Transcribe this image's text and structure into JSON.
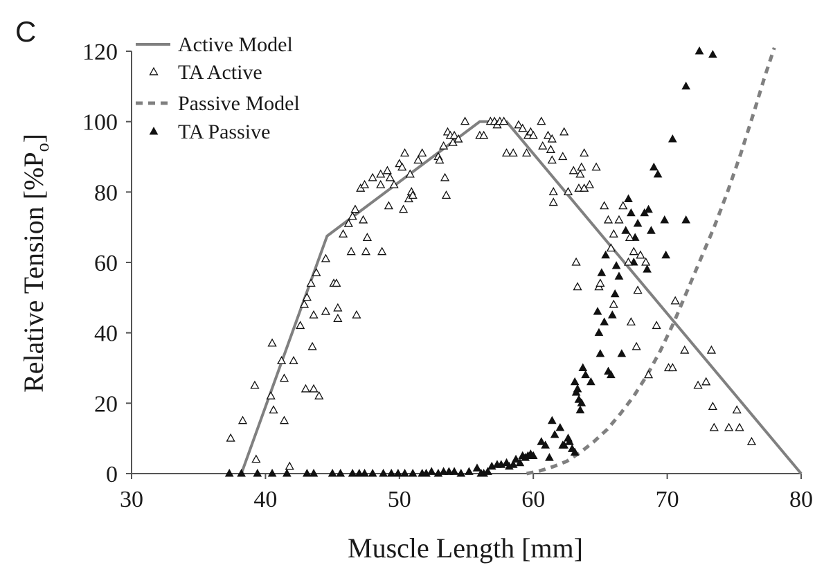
{
  "panel_label": "C",
  "chart_data": {
    "type": "scatter",
    "xlabel": "Muscle Length [mm]",
    "ylabel": "Relative Tension [%P",
    "ylabel_sub": "o",
    "ylabel_end": "]",
    "xlim": [
      30,
      80
    ],
    "ylim": [
      0,
      120
    ],
    "xticks": [
      30,
      40,
      50,
      60,
      70,
      80
    ],
    "yticks": [
      0,
      20,
      40,
      60,
      80,
      100,
      120
    ],
    "grid": false,
    "legend_position": "top-left",
    "legend": [
      {
        "label": "Active Model",
        "marker": "solid-line"
      },
      {
        "label": "TA Active",
        "marker": "open-triangle"
      },
      {
        "label": "Passive Model",
        "marker": "dashed-line"
      },
      {
        "label": "TA Passive",
        "marker": "filled-triangle"
      }
    ],
    "colors": {
      "model": "#808080",
      "points": "#111111",
      "axis": "#555555"
    },
    "active_model": {
      "name": "Active Model",
      "x": [
        38.2,
        44.6,
        56.0,
        58.0,
        80.0
      ],
      "y": [
        0,
        67.5,
        100,
        100,
        0
      ]
    },
    "passive_model": {
      "name": "Passive Model",
      "x": [
        59.5,
        60.5,
        61.5,
        62.5,
        63.5,
        64.5,
        65.5,
        66.5,
        67.5,
        68.5,
        69.5,
        70.5,
        71.5,
        72.5,
        73.5,
        74.5,
        75.5,
        76.5,
        77.3,
        78.0
      ],
      "y": [
        0,
        0.8,
        2,
        3.5,
        6,
        9,
        12.5,
        17,
        22,
        28,
        35,
        43,
        52,
        61,
        70,
        80,
        91,
        103,
        113,
        121
      ]
    },
    "ta_active": {
      "name": "TA Active",
      "points": [
        [
          37.4,
          10
        ],
        [
          38.3,
          15
        ],
        [
          39.2,
          25
        ],
        [
          39.3,
          4
        ],
        [
          40.5,
          37
        ],
        [
          40.4,
          22
        ],
        [
          40.6,
          18
        ],
        [
          41.2,
          32
        ],
        [
          41.4,
          27
        ],
        [
          41.4,
          15
        ],
        [
          41.8,
          2
        ],
        [
          42.1,
          32
        ],
        [
          42.6,
          42
        ],
        [
          42.9,
          48
        ],
        [
          43.1,
          50
        ],
        [
          43.0,
          24
        ],
        [
          43.4,
          54
        ],
        [
          43.6,
          45
        ],
        [
          43.5,
          36
        ],
        [
          43.6,
          24
        ],
        [
          43.8,
          57
        ],
        [
          44.0,
          22
        ],
        [
          44.5,
          61
        ],
        [
          44.5,
          46
        ],
        [
          45.1,
          54
        ],
        [
          45.3,
          54
        ],
        [
          45.4,
          47
        ],
        [
          45.4,
          44
        ],
        [
          45.8,
          68
        ],
        [
          46.2,
          71
        ],
        [
          46.5,
          73
        ],
        [
          46.4,
          63
        ],
        [
          46.7,
          75
        ],
        [
          46.8,
          45
        ],
        [
          47.1,
          81
        ],
        [
          47.3,
          72
        ],
        [
          47.4,
          82
        ],
        [
          47.5,
          63
        ],
        [
          47.6,
          67
        ],
        [
          48.0,
          84
        ],
        [
          48.6,
          85
        ],
        [
          48.6,
          82
        ],
        [
          48.7,
          63
        ],
        [
          49.1,
          86
        ],
        [
          49.2,
          76
        ],
        [
          49.3,
          84
        ],
        [
          49.6,
          82
        ],
        [
          50.0,
          88
        ],
        [
          50.2,
          87
        ],
        [
          50.3,
          75
        ],
        [
          50.4,
          91
        ],
        [
          50.7,
          78
        ],
        [
          50.8,
          85
        ],
        [
          50.9,
          80
        ],
        [
          51.0,
          79
        ],
        [
          51.4,
          89
        ],
        [
          51.7,
          91
        ],
        [
          52.9,
          90
        ],
        [
          53.0,
          89
        ],
        [
          53.3,
          93
        ],
        [
          53.4,
          84
        ],
        [
          53.5,
          79
        ],
        [
          53.6,
          97
        ],
        [
          53.8,
          96
        ],
        [
          54.0,
          94
        ],
        [
          54.1,
          96
        ],
        [
          54.4,
          95
        ],
        [
          54.9,
          100
        ],
        [
          56.0,
          96
        ],
        [
          56.3,
          96
        ],
        [
          56.8,
          100
        ],
        [
          57.1,
          100
        ],
        [
          57.3,
          99
        ],
        [
          57.5,
          100
        ],
        [
          57.8,
          100
        ],
        [
          58.0,
          91
        ],
        [
          58.5,
          91
        ],
        [
          58.9,
          99
        ],
        [
          59.2,
          98
        ],
        [
          59.5,
          91
        ],
        [
          59.6,
          96
        ],
        [
          59.8,
          97
        ],
        [
          60.0,
          96
        ],
        [
          60.6,
          100
        ],
        [
          60.7,
          93
        ],
        [
          61.1,
          96
        ],
        [
          61.3,
          92
        ],
        [
          61.4,
          95
        ],
        [
          61.4,
          89
        ],
        [
          61.5,
          80
        ],
        [
          61.5,
          77
        ],
        [
          62.2,
          90
        ],
        [
          62.3,
          97
        ],
        [
          62.6,
          80
        ],
        [
          63.0,
          86
        ],
        [
          63.2,
          60
        ],
        [
          63.3,
          53
        ],
        [
          63.4,
          81
        ],
        [
          63.5,
          85
        ],
        [
          63.6,
          87
        ],
        [
          63.8,
          91
        ],
        [
          63.8,
          81
        ],
        [
          64.2,
          82
        ],
        [
          64.7,
          87
        ],
        [
          64.9,
          53
        ],
        [
          65.0,
          54
        ],
        [
          65.3,
          76
        ],
        [
          65.6,
          72
        ],
        [
          65.8,
          64
        ],
        [
          66.0,
          68
        ],
        [
          66.0,
          48
        ],
        [
          66.4,
          72
        ],
        [
          66.7,
          76
        ],
        [
          67.1,
          60
        ],
        [
          67.2,
          67
        ],
        [
          67.3,
          43
        ],
        [
          67.5,
          63
        ],
        [
          67.7,
          36
        ],
        [
          67.8,
          52
        ],
        [
          68.0,
          62
        ],
        [
          68.4,
          60
        ],
        [
          68.6,
          28
        ],
        [
          69.2,
          42
        ],
        [
          70.1,
          30
        ],
        [
          70.4,
          30
        ],
        [
          70.6,
          49
        ],
        [
          71.3,
          35
        ],
        [
          72.3,
          25
        ],
        [
          72.9,
          26
        ],
        [
          73.3,
          35
        ],
        [
          73.4,
          19
        ],
        [
          73.5,
          13
        ],
        [
          74.6,
          13
        ],
        [
          75.2,
          18
        ],
        [
          75.4,
          13
        ],
        [
          76.3,
          9
        ]
      ]
    },
    "ta_passive": {
      "name": "TA Passive",
      "points": [
        [
          37.3,
          0
        ],
        [
          38.2,
          0
        ],
        [
          39.4,
          0
        ],
        [
          40.5,
          0
        ],
        [
          41.6,
          0
        ],
        [
          43.1,
          0
        ],
        [
          43.6,
          0
        ],
        [
          45.0,
          0
        ],
        [
          45.6,
          0
        ],
        [
          46.5,
          0
        ],
        [
          47.0,
          0
        ],
        [
          47.4,
          0
        ],
        [
          48.0,
          0
        ],
        [
          48.8,
          0
        ],
        [
          49.4,
          0
        ],
        [
          49.9,
          0
        ],
        [
          50.4,
          0
        ],
        [
          51.0,
          0
        ],
        [
          51.7,
          0
        ],
        [
          52.0,
          0
        ],
        [
          52.4,
          0.5
        ],
        [
          52.9,
          0
        ],
        [
          53.3,
          0.5
        ],
        [
          53.7,
          0.5
        ],
        [
          54.1,
          0.5
        ],
        [
          54.6,
          0
        ],
        [
          55.2,
          0.5
        ],
        [
          55.8,
          1.5
        ],
        [
          56.1,
          0
        ],
        [
          56.3,
          0
        ],
        [
          56.6,
          0.5
        ],
        [
          56.9,
          2
        ],
        [
          57.3,
          2.5
        ],
        [
          57.6,
          2.5
        ],
        [
          58.0,
          3
        ],
        [
          58.2,
          2
        ],
        [
          58.5,
          2.5
        ],
        [
          58.7,
          4
        ],
        [
          59.0,
          3
        ],
        [
          59.2,
          5
        ],
        [
          59.4,
          4.5
        ],
        [
          59.6,
          5
        ],
        [
          59.8,
          5.5
        ],
        [
          60.0,
          5
        ],
        [
          60.6,
          9
        ],
        [
          60.9,
          8
        ],
        [
          61.2,
          4.5
        ],
        [
          61.4,
          15
        ],
        [
          61.6,
          11
        ],
        [
          62.0,
          13
        ],
        [
          62.2,
          8
        ],
        [
          62.3,
          8
        ],
        [
          62.6,
          10
        ],
        [
          62.7,
          9
        ],
        [
          62.9,
          7
        ],
        [
          63.1,
          6
        ],
        [
          63.1,
          26
        ],
        [
          63.2,
          23
        ],
        [
          63.3,
          24
        ],
        [
          63.4,
          21
        ],
        [
          63.5,
          18
        ],
        [
          63.6,
          20
        ],
        [
          63.7,
          30
        ],
        [
          63.9,
          28
        ],
        [
          64.3,
          26
        ],
        [
          64.8,
          46
        ],
        [
          64.9,
          40
        ],
        [
          65.0,
          34
        ],
        [
          65.1,
          57
        ],
        [
          65.3,
          43
        ],
        [
          65.4,
          62
        ],
        [
          65.6,
          29
        ],
        [
          65.8,
          28
        ],
        [
          65.9,
          45
        ],
        [
          66.1,
          51
        ],
        [
          66.2,
          59
        ],
        [
          66.4,
          56
        ],
        [
          66.6,
          34
        ],
        [
          66.9,
          69
        ],
        [
          67.1,
          78
        ],
        [
          67.3,
          74
        ],
        [
          67.5,
          60
        ],
        [
          67.6,
          67
        ],
        [
          67.8,
          71
        ],
        [
          68.3,
          74
        ],
        [
          68.5,
          58
        ],
        [
          68.6,
          75
        ],
        [
          68.8,
          69
        ],
        [
          69.0,
          87
        ],
        [
          69.3,
          85
        ],
        [
          69.8,
          72
        ],
        [
          69.9,
          62
        ],
        [
          70.4,
          95
        ],
        [
          71.4,
          110
        ],
        [
          71.4,
          72
        ],
        [
          72.4,
          120
        ],
        [
          73.4,
          119
        ]
      ]
    }
  }
}
